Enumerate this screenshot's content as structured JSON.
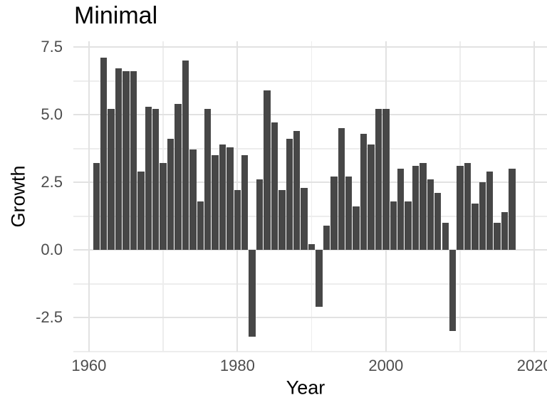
{
  "chart_data": {
    "type": "bar",
    "title": "Minimal",
    "xlabel": "Year",
    "ylabel": "Growth",
    "x": [
      1961,
      1962,
      1963,
      1964,
      1965,
      1966,
      1967,
      1968,
      1969,
      1970,
      1971,
      1972,
      1973,
      1974,
      1975,
      1976,
      1977,
      1978,
      1979,
      1980,
      1981,
      1982,
      1983,
      1984,
      1985,
      1986,
      1987,
      1988,
      1989,
      1990,
      1991,
      1992,
      1993,
      1994,
      1995,
      1996,
      1997,
      1998,
      1999,
      2000,
      2001,
      2002,
      2003,
      2004,
      2005,
      2006,
      2007,
      2008,
      2009,
      2010,
      2011,
      2012,
      2013,
      2014,
      2015,
      2016,
      2017
    ],
    "values": [
      3.2,
      7.1,
      5.2,
      6.7,
      6.6,
      6.6,
      2.9,
      5.3,
      5.2,
      3.2,
      4.1,
      5.4,
      7.0,
      3.7,
      1.8,
      5.2,
      3.5,
      3.9,
      3.8,
      2.2,
      3.5,
      -3.2,
      2.6,
      5.9,
      4.7,
      2.2,
      4.1,
      4.4,
      2.3,
      0.2,
      -2.1,
      0.9,
      2.7,
      4.5,
      2.7,
      1.6,
      4.3,
      3.9,
      5.2,
      5.2,
      1.8,
      3.0,
      1.8,
      3.1,
      3.2,
      2.6,
      2.1,
      1.0,
      -3.0,
      3.1,
      3.2,
      1.7,
      2.5,
      2.9,
      1.0,
      1.4,
      3.0
    ],
    "xlim": [
      1957.9,
      2021.7
    ],
    "ylim": [
      -3.76,
      7.71
    ],
    "x_ticks": {
      "values": [
        1960,
        1980,
        2000,
        2020
      ],
      "labels": [
        "1960",
        "1980",
        "2000",
        "2020"
      ]
    },
    "y_ticks": {
      "values": [
        7.5,
        5.0,
        2.5,
        0.0,
        -2.5
      ],
      "labels": [
        "7.5",
        "5.0",
        "2.5",
        "0.0",
        "-2.5"
      ]
    },
    "x_minor_gridlines": [
      1970,
      1990,
      2010
    ],
    "y_minor_gridlines": [
      6.25,
      3.75,
      1.25,
      -1.25,
      -3.75
    ],
    "grid": "on",
    "legend_position": "none",
    "colors": {
      "bar": "#474747",
      "grid_major": "#e2e2e2",
      "grid_minor": "#ededed",
      "tick_label": "#4d4d4d",
      "text": "#000000",
      "background": "#ffffff"
    }
  }
}
